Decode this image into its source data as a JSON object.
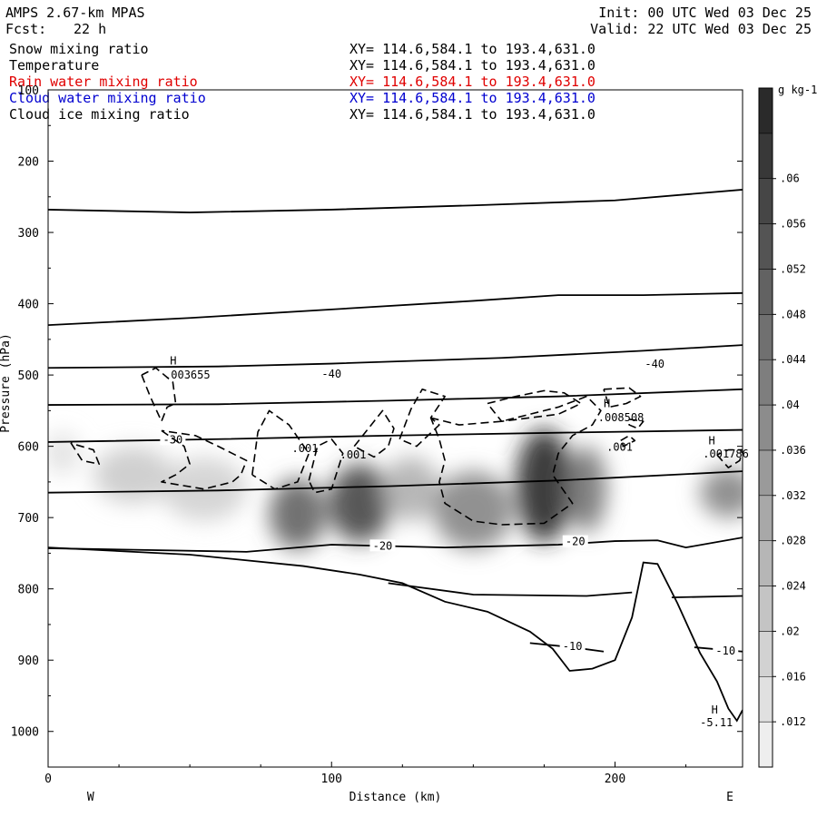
{
  "header": {
    "model": "AMPS 2.67-km MPAS",
    "init": "Init: 00 UTC Wed 03 Dec 25",
    "fcst_label": "Fcst:",
    "fcst_value": "22 h",
    "valid": "Valid: 22 UTC Wed 03 Dec 25"
  },
  "fields": [
    {
      "name": "Snow mixing ratio",
      "xy": "XY= 114.6,584.1 to 193.4,631.0",
      "color": "#000000"
    },
    {
      "name": "Temperature",
      "xy": "XY= 114.6,584.1 to 193.4,631.0",
      "color": "#000000"
    },
    {
      "name": "Rain water mixing ratio",
      "xy": "XY= 114.6,584.1 to 193.4,631.0",
      "color": "#e00000"
    },
    {
      "name": "Cloud water mixing ratio",
      "xy": "XY= 114.6,584.1 to 193.4,631.0",
      "color": "#0000d0"
    },
    {
      "name": "Cloud ice mixing ratio",
      "xy": "XY= 114.6,584.1 to 193.4,631.0",
      "color": "#000000"
    }
  ],
  "chart_data": {
    "type": "heatmap",
    "xlabel": "Distance (km)",
    "ylabel": "Pressure (hPa)",
    "xlim": [
      0,
      245
    ],
    "ylim": [
      100,
      1050
    ],
    "x_ticks": [
      0,
      100,
      200
    ],
    "y_ticks": [
      100,
      200,
      300,
      400,
      500,
      600,
      700,
      800,
      900,
      1000
    ],
    "x_end_labels": {
      "left": "W",
      "right": "E"
    },
    "colorbar": {
      "units": "g kg-1",
      "ticks": [
        ".012",
        ".016",
        ".02",
        ".024",
        ".028",
        ".032",
        ".036",
        ".04",
        ".044",
        ".048",
        ".052",
        ".056",
        ".06"
      ],
      "tick_values": [
        0.012,
        0.016,
        0.02,
        0.024,
        0.028,
        0.032,
        0.036,
        0.04,
        0.044,
        0.048,
        0.052,
        0.056,
        0.06
      ],
      "range": [
        0.008,
        0.068
      ]
    },
    "snow_blobs": [
      {
        "x": 30,
        "p": 640,
        "sx": 14,
        "sp": 40,
        "v": 0.02
      },
      {
        "x": 55,
        "p": 660,
        "sx": 15,
        "sp": 45,
        "v": 0.018
      },
      {
        "x": 88,
        "p": 695,
        "sx": 10,
        "sp": 50,
        "v": 0.05
      },
      {
        "x": 110,
        "p": 680,
        "sx": 11,
        "sp": 55,
        "v": 0.058
      },
      {
        "x": 128,
        "p": 660,
        "sx": 10,
        "sp": 45,
        "v": 0.028
      },
      {
        "x": 150,
        "p": 690,
        "sx": 14,
        "sp": 55,
        "v": 0.04
      },
      {
        "x": 175,
        "p": 655,
        "sx": 10,
        "sp": 80,
        "v": 0.066
      },
      {
        "x": 190,
        "p": 660,
        "sx": 7,
        "sp": 60,
        "v": 0.045
      },
      {
        "x": 240,
        "p": 665,
        "sx": 10,
        "sp": 35,
        "v": 0.04
      },
      {
        "x": 5,
        "p": 610,
        "sx": 6,
        "sp": 30,
        "v": 0.014
      }
    ],
    "terrain": [
      [
        0,
        742
      ],
      [
        50,
        752
      ],
      [
        90,
        768
      ],
      [
        110,
        780
      ],
      [
        125,
        792
      ],
      [
        140,
        818
      ],
      [
        155,
        832
      ],
      [
        170,
        860
      ],
      [
        178,
        884
      ],
      [
        184,
        915
      ],
      [
        192,
        912
      ],
      [
        200,
        900
      ],
      [
        206,
        840
      ],
      [
        210,
        763
      ],
      [
        215,
        765
      ],
      [
        222,
        820
      ],
      [
        230,
        890
      ],
      [
        236,
        930
      ],
      [
        240,
        968
      ],
      [
        243,
        985
      ],
      [
        245,
        970
      ]
    ],
    "isotherms": [
      {
        "label": "",
        "points": [
          [
            0,
            268
          ],
          [
            50,
            272
          ],
          [
            100,
            268
          ],
          [
            150,
            262
          ],
          [
            200,
            255
          ],
          [
            245,
            240
          ]
        ]
      },
      {
        "label": "",
        "points": [
          [
            0,
            430
          ],
          [
            50,
            420
          ],
          [
            100,
            408
          ],
          [
            150,
            396
          ],
          [
            180,
            388
          ],
          [
            210,
            388
          ],
          [
            245,
            385
          ]
        ]
      },
      {
        "label": "-40",
        "label_pos": [
          100,
          500
        ],
        "points": [
          [
            0,
            490
          ],
          [
            60,
            488
          ],
          [
            100,
            484
          ],
          [
            160,
            476
          ],
          [
            210,
            466
          ],
          [
            245,
            458
          ]
        ]
      },
      {
        "label": "-40",
        "label_pos": [
          214,
          486
        ],
        "points": []
      },
      {
        "label": "",
        "points": [
          [
            0,
            542
          ],
          [
            60,
            541
          ],
          [
            120,
            536
          ],
          [
            180,
            530
          ],
          [
            245,
            520
          ]
        ]
      },
      {
        "label": "-30",
        "label_pos": [
          44,
          592
        ],
        "points": [
          [
            0,
            594
          ],
          [
            60,
            590
          ],
          [
            120,
            585
          ],
          [
            180,
            581
          ],
          [
            245,
            577
          ]
        ]
      },
      {
        "label": "",
        "points": [
          [
            0,
            665
          ],
          [
            60,
            662
          ],
          [
            120,
            656
          ],
          [
            180,
            648
          ],
          [
            245,
            635
          ]
        ]
      },
      {
        "label": "-20",
        "label_pos": [
          118,
          741
        ],
        "points": [
          [
            0,
            743
          ],
          [
            70,
            748
          ],
          [
            100,
            738
          ],
          [
            140,
            742
          ],
          [
            180,
            738
          ],
          [
            200,
            733
          ],
          [
            215,
            732
          ],
          [
            225,
            742
          ],
          [
            245,
            728
          ]
        ]
      },
      {
        "label": "-20",
        "label_pos": [
          186,
          735
        ],
        "points": []
      },
      {
        "label": "",
        "points": [
          [
            120,
            792
          ],
          [
            150,
            808
          ],
          [
            190,
            810
          ],
          [
            206,
            805
          ]
        ]
      },
      {
        "label": "",
        "points": [
          [
            220,
            812
          ],
          [
            245,
            810
          ]
        ]
      },
      {
        "label": "-10",
        "label_pos": [
          185,
          882
        ],
        "points": [
          [
            170,
            876
          ],
          [
            185,
            882
          ],
          [
            196,
            888
          ]
        ]
      },
      {
        "label": "-10",
        "label_pos": [
          239,
          888
        ],
        "points": [
          [
            228,
            882
          ],
          [
            245,
            888
          ]
        ]
      }
    ],
    "cloud_ice_contours": [
      [
        [
          33,
          500
        ],
        [
          36,
          530
        ],
        [
          40,
          565
        ],
        [
          42,
          545
        ],
        [
          45,
          540
        ],
        [
          44,
          510
        ],
        [
          38,
          490
        ],
        [
          33,
          500
        ]
      ],
      [
        [
          8,
          595
        ],
        [
          12,
          620
        ],
        [
          18,
          625
        ],
        [
          16,
          605
        ],
        [
          10,
          598
        ],
        [
          8,
          595
        ]
      ],
      [
        [
          40,
          578
        ],
        [
          48,
          600
        ],
        [
          50,
          625
        ],
        [
          45,
          640
        ],
        [
          40,
          650
        ],
        [
          55,
          660
        ],
        [
          65,
          650
        ],
        [
          68,
          640
        ],
        [
          70,
          620
        ],
        [
          60,
          600
        ],
        [
          52,
          585
        ],
        [
          40,
          578
        ]
      ],
      [
        [
          72,
          640
        ],
        [
          74,
          580
        ],
        [
          78,
          550
        ],
        [
          85,
          570
        ],
        [
          92,
          610
        ],
        [
          88,
          650
        ],
        [
          80,
          660
        ],
        [
          72,
          640
        ]
      ],
      [
        [
          92,
          648
        ],
        [
          95,
          600
        ],
        [
          100,
          590
        ],
        [
          104,
          610
        ],
        [
          100,
          660
        ],
        [
          94,
          665
        ],
        [
          92,
          648
        ]
      ],
      [
        [
          108,
          600
        ],
        [
          115,
          565
        ],
        [
          118,
          550
        ],
        [
          122,
          575
        ],
        [
          120,
          600
        ],
        [
          115,
          615
        ],
        [
          108,
          600
        ]
      ],
      [
        [
          124,
          590
        ],
        [
          128,
          548
        ],
        [
          132,
          520
        ],
        [
          140,
          530
        ],
        [
          135,
          560
        ],
        [
          138,
          570
        ],
        [
          130,
          600
        ],
        [
          124,
          590
        ]
      ],
      [
        [
          135,
          560
        ],
        [
          145,
          570
        ],
        [
          160,
          565
        ],
        [
          180,
          545
        ],
        [
          190,
          530
        ],
        [
          195,
          550
        ],
        [
          192,
          570
        ],
        [
          185,
          585
        ],
        [
          180,
          610
        ],
        [
          178,
          640
        ],
        [
          185,
          680
        ],
        [
          175,
          708
        ],
        [
          160,
          710
        ],
        [
          150,
          705
        ],
        [
          140,
          680
        ],
        [
          138,
          650
        ],
        [
          140,
          620
        ],
        [
          138,
          590
        ],
        [
          135,
          560
        ]
      ],
      [
        [
          155,
          540
        ],
        [
          165,
          530
        ],
        [
          175,
          522
        ],
        [
          182,
          525
        ],
        [
          188,
          540
        ],
        [
          180,
          555
        ],
        [
          170,
          560
        ],
        [
          160,
          565
        ],
        [
          155,
          540
        ]
      ],
      [
        [
          196,
          520
        ],
        [
          205,
          518
        ],
        [
          209,
          530
        ],
        [
          204,
          540
        ],
        [
          198,
          545
        ],
        [
          196,
          520
        ]
      ],
      [
        [
          202,
          592
        ],
        [
          205,
          585
        ],
        [
          207,
          592
        ],
        [
          203,
          600
        ],
        [
          202,
          592
        ]
      ],
      [
        [
          236,
          612
        ],
        [
          240,
          630
        ],
        [
          244,
          620
        ],
        [
          245,
          605
        ],
        [
          240,
          605
        ],
        [
          236,
          612
        ]
      ],
      [
        [
          205,
          562
        ],
        [
          210,
          565
        ],
        [
          208,
          575
        ],
        [
          205,
          570
        ],
        [
          205,
          562
        ]
      ]
    ],
    "labels": [
      {
        "text": "H",
        "x": 43,
        "p": 485
      },
      {
        "text": ".003655",
        "x": 41,
        "p": 505
      },
      {
        "text": "H",
        "x": 196,
        "p": 545
      },
      {
        "text": ".008508",
        "x": 194,
        "p": 565
      },
      {
        "text": ".001",
        "x": 86,
        "p": 608
      },
      {
        "text": ".001",
        "x": 103,
        "p": 617
      },
      {
        "text": ".001",
        "x": 197,
        "p": 606
      },
      {
        "text": "H",
        "x": 233,
        "p": 597
      },
      {
        "text": ".001786",
        "x": 231,
        "p": 616
      },
      {
        "text": "H",
        "x": 234,
        "p": 975
      },
      {
        "text": "-5.11",
        "x": 230,
        "p": 993
      }
    ]
  }
}
